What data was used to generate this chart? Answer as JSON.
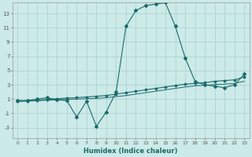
{
  "xlabel": "Humidex (Indice chaleur)",
  "bg_color": "#cceae8",
  "grid_color": "#aed4d2",
  "line_color": "#1a6b6b",
  "xlim": [
    -0.5,
    23.5
  ],
  "ylim": [
    -4.5,
    14.5
  ],
  "yticks": [
    -3,
    -1,
    1,
    3,
    5,
    7,
    9,
    11,
    13
  ],
  "xticks": [
    0,
    1,
    2,
    3,
    4,
    5,
    6,
    7,
    8,
    9,
    10,
    11,
    12,
    13,
    14,
    15,
    16,
    17,
    18,
    19,
    20,
    21,
    22,
    23
  ],
  "series1_x": [
    0,
    1,
    2,
    3,
    4,
    5,
    6,
    7,
    8,
    9,
    10,
    11,
    12,
    13,
    14,
    15,
    16,
    17,
    18,
    19,
    20,
    21,
    22,
    23
  ],
  "series1_y": [
    0.8,
    0.8,
    1.0,
    1.2,
    0.9,
    0.8,
    -1.5,
    0.7,
    -2.8,
    -0.8,
    2.0,
    11.2,
    13.4,
    14.1,
    14.3,
    14.5,
    11.2,
    6.8,
    3.5,
    3.0,
    2.8,
    2.6,
    3.0,
    4.5
  ],
  "series2_x": [
    0,
    1,
    2,
    3,
    4,
    5,
    6,
    7,
    8,
    9,
    10,
    11,
    12,
    13,
    14,
    15,
    16,
    17,
    18,
    19,
    20,
    21,
    22,
    23
  ],
  "series2_y": [
    0.7,
    0.75,
    0.85,
    0.95,
    1.05,
    1.15,
    1.2,
    1.3,
    1.4,
    1.5,
    1.7,
    1.9,
    2.1,
    2.3,
    2.5,
    2.7,
    2.9,
    3.1,
    3.2,
    3.3,
    3.5,
    3.6,
    3.7,
    4.1
  ],
  "series3_x": [
    0,
    1,
    2,
    3,
    4,
    5,
    6,
    7,
    8,
    9,
    10,
    11,
    12,
    13,
    14,
    15,
    16,
    17,
    18,
    19,
    20,
    21,
    22,
    23
  ],
  "series3_y": [
    0.7,
    0.72,
    0.78,
    0.84,
    0.9,
    0.95,
    1.0,
    1.05,
    1.1,
    1.2,
    1.35,
    1.5,
    1.7,
    1.9,
    2.1,
    2.3,
    2.5,
    2.7,
    2.85,
    2.95,
    3.05,
    3.1,
    3.2,
    3.5
  ]
}
